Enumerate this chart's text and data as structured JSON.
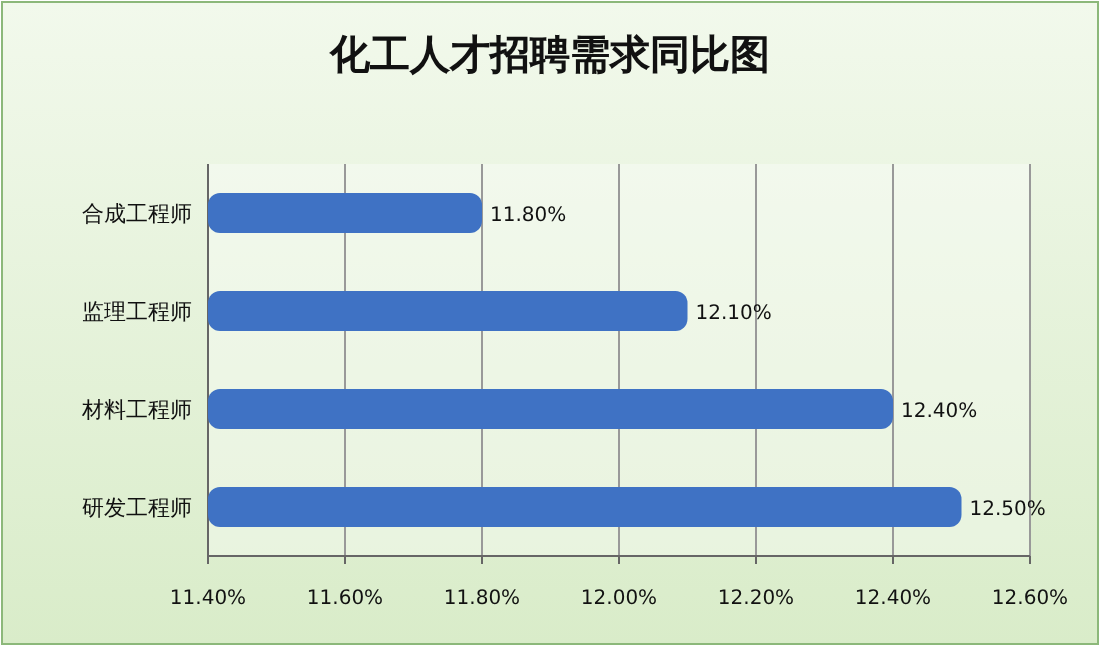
{
  "chart_data": {
    "type": "bar",
    "orientation": "horizontal",
    "title": "化工人才招聘需求同比图",
    "categories": [
      "合成工程师",
      "监理工程师",
      "材料工程师",
      "研发工程师"
    ],
    "values": [
      11.8,
      12.1,
      12.4,
      12.5
    ],
    "value_labels": [
      "11.80%",
      "12.10%",
      "12.40%",
      "12.50%"
    ],
    "color": "#3f72c4",
    "xlim": [
      11.4,
      12.6
    ],
    "xticks": [
      {
        "value": 11.4,
        "label": "11.40%"
      },
      {
        "value": 11.6,
        "label": "11.60%"
      },
      {
        "value": 11.8,
        "label": "11.80%"
      },
      {
        "value": 12.0,
        "label": "12.00%"
      },
      {
        "value": 12.2,
        "label": "12.20%"
      },
      {
        "value": 12.4,
        "label": "12.40%"
      },
      {
        "value": 12.6,
        "label": "12.60%"
      }
    ],
    "grid": "x"
  }
}
